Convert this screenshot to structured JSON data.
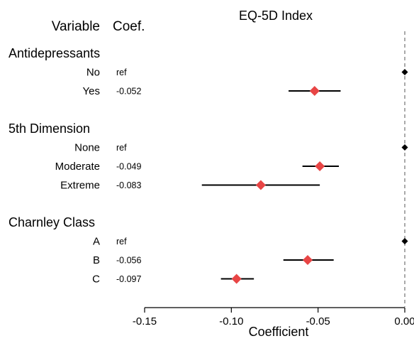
{
  "chart_data": {
    "type": "forest",
    "title": "EQ-5D Index",
    "columns": {
      "variable_header": "Variable",
      "coef_header": "Coef."
    },
    "xlabel": "Coefficient",
    "xlim": [
      -0.15,
      0.0
    ],
    "xticks": [
      -0.15,
      -0.1,
      -0.05,
      0.0
    ],
    "xtick_labels": [
      "-0.15",
      "-0.10",
      "-0.05",
      "0.00"
    ],
    "reference_line": 0.0,
    "groups": [
      {
        "name": "Antidepressants",
        "rows": [
          {
            "label": "No",
            "coef_text": "ref",
            "estimate": 0.0,
            "ci_low": null,
            "ci_high": null,
            "reference": true
          },
          {
            "label": "Yes",
            "coef_text": "-0.052",
            "estimate": -0.052,
            "ci_low": -0.067,
            "ci_high": -0.037,
            "reference": false
          }
        ]
      },
      {
        "name": "5th Dimension",
        "rows": [
          {
            "label": "None",
            "coef_text": "ref",
            "estimate": 0.0,
            "ci_low": null,
            "ci_high": null,
            "reference": true
          },
          {
            "label": "Moderate",
            "coef_text": "-0.049",
            "estimate": -0.049,
            "ci_low": -0.059,
            "ci_high": -0.038,
            "reference": false
          },
          {
            "label": "Extreme",
            "coef_text": "-0.083",
            "estimate": -0.083,
            "ci_low": -0.117,
            "ci_high": -0.049,
            "reference": false
          }
        ]
      },
      {
        "name": "Charnley Class",
        "rows": [
          {
            "label": "A",
            "coef_text": "ref",
            "estimate": 0.0,
            "ci_low": null,
            "ci_high": null,
            "reference": true
          },
          {
            "label": "B",
            "coef_text": "-0.056",
            "estimate": -0.056,
            "ci_low": -0.07,
            "ci_high": -0.041,
            "reference": false
          },
          {
            "label": "C",
            "coef_text": "-0.097",
            "estimate": -0.097,
            "ci_low": -0.106,
            "ci_high": -0.087,
            "reference": false
          }
        ]
      }
    ],
    "colors": {
      "estimate_marker": "#e84545",
      "reference_marker": "#000000",
      "ci_line": "#000000",
      "reference_line": "#aaaaaa"
    }
  }
}
